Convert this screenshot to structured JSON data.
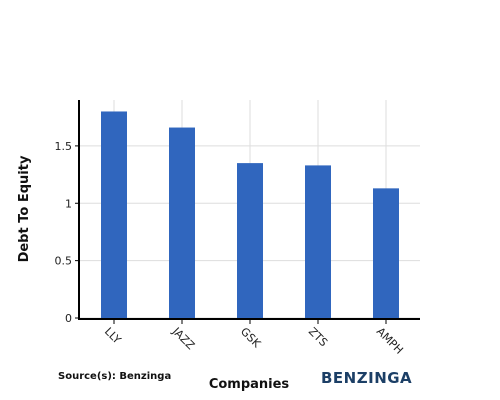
{
  "chart_data": {
    "type": "bar",
    "categories": [
      "LLY",
      "JAZZ",
      "GSK",
      "ZTS",
      "AMPH"
    ],
    "values": [
      1.8,
      1.66,
      1.35,
      1.33,
      1.13
    ],
    "xlabel": "Companies",
    "ylabel": "Debt To Equity",
    "ylim": [
      0,
      1.9
    ],
    "yticks": [
      0,
      0.5,
      1,
      1.5
    ],
    "ytick_labels": [
      "0",
      "0.5",
      "1",
      "1.5"
    ],
    "grid": true,
    "bar_color": "#3066be"
  },
  "source_text": "Source(s): Benzinga",
  "logo_text": "BENZINGA"
}
